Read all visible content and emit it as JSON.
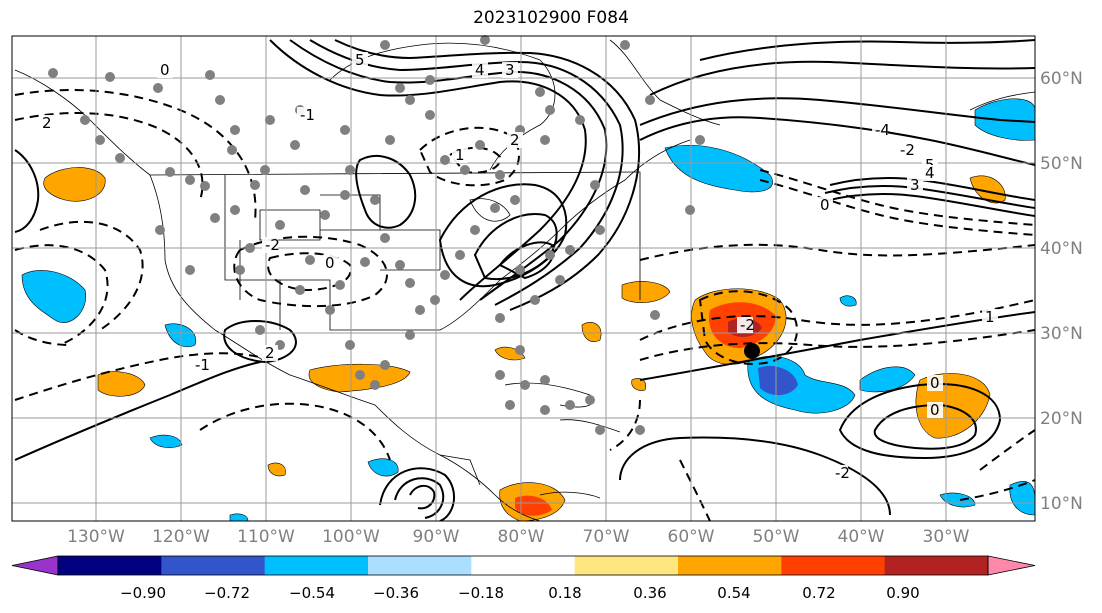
{
  "title": "2023102900 F084",
  "map": {
    "latitude_labels": [
      "60°N",
      "50°N",
      "40°N",
      "30°N",
      "20°N",
      "10°N"
    ],
    "longitude_labels": [
      "130°W",
      "120°W",
      "110°W",
      "100°W",
      "90°W",
      "80°W",
      "70°W",
      "60°W",
      "50°W",
      "40°W",
      "30°W"
    ],
    "gridlines": true,
    "contour_labels": [
      "5",
      "4",
      "3",
      "2",
      "1",
      "0",
      "-2",
      "-1",
      "0",
      "-2",
      "-4",
      "-2",
      "5",
      "4",
      "3",
      "2",
      "1",
      "0",
      "2",
      "-1",
      "-2",
      "0",
      "0"
    ],
    "colors": {
      "contour": "#000000",
      "gridline": "#9a9a9a",
      "coast": "#000000",
      "station_dot": "#808080",
      "center_marker": "#000000"
    }
  },
  "colorbar": {
    "ticks": [
      "−0.90",
      "−0.72",
      "−0.54",
      "−0.36",
      "−0.18",
      "0.18",
      "0.36",
      "0.54",
      "0.72",
      "0.90"
    ],
    "colors": [
      "#9933cc",
      "#000080",
      "#3355cc",
      "#00bfff",
      "#aadfff",
      "#ffffff",
      "#ffe680",
      "#ffa500",
      "#ff4000",
      "#b22222",
      "#ff88aa"
    ]
  }
}
